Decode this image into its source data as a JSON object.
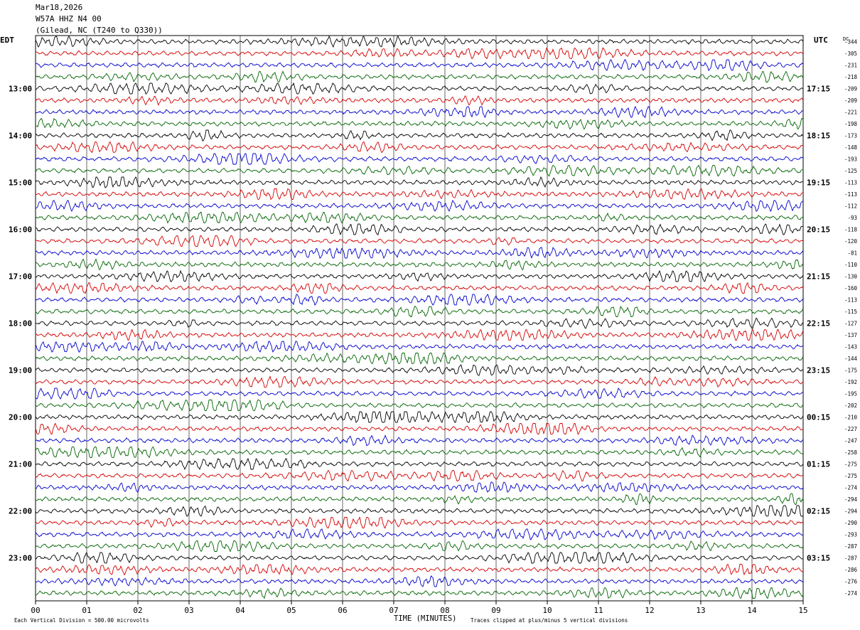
{
  "header": {
    "date": "Mar18,2026",
    "station": "W57A HHZ N4 00",
    "location": "(Gilead, NC (T240 to Q330))"
  },
  "labels": {
    "left_zone": "EDT",
    "right_zone": "UTC",
    "dc": "DC",
    "footer_left": "Each Vertical Division =  500.00 microvolts",
    "footer_center": "TIME (MINUTES)",
    "footer_right": "Traces clipped at plus/minus 5 vertical divisions"
  },
  "colors": {
    "trace_cycle": [
      "#000000",
      "#d40000",
      "#0000cc",
      "#006400"
    ],
    "grid": "#000000"
  },
  "chart_data": {
    "type": "line",
    "chart_kind": "helicorder",
    "x_axis": {
      "label": "TIME (MINUTES)",
      "range": [
        0,
        15
      ],
      "ticks": [
        "00",
        "01",
        "02",
        "03",
        "04",
        "05",
        "06",
        "07",
        "08",
        "09",
        "10",
        "11",
        "12",
        "13",
        "14",
        "15"
      ]
    },
    "left_hour_labels": [
      "13:00",
      "14:00",
      "15:00",
      "16:00",
      "17:00",
      "18:00",
      "19:00",
      "20:00",
      "21:00",
      "22:00",
      "23:00"
    ],
    "right_hour_labels": [
      "17:15",
      "18:15",
      "19:15",
      "20:15",
      "21:15",
      "22:15",
      "23:15",
      "00:15",
      "01:15",
      "02:15",
      "03:15"
    ],
    "dc_offsets": [
      -344,
      -305,
      -231,
      -218,
      -209,
      -209,
      -221,
      -198,
      -173,
      -148,
      -193,
      -125,
      -113,
      -113,
      -112,
      -93,
      -118,
      -120,
      -81,
      -110,
      -130,
      -160,
      -113,
      -115,
      -127,
      -137,
      -143,
      -144,
      -175,
      -192,
      -195,
      -202,
      -210,
      -227,
      -247,
      -258,
      -275,
      -275,
      -274,
      -294,
      -294,
      -290,
      -293,
      -287,
      -287,
      -286,
      -276,
      -274
    ],
    "trace_minutes": 15,
    "trace_count": 48,
    "grid": true
  }
}
